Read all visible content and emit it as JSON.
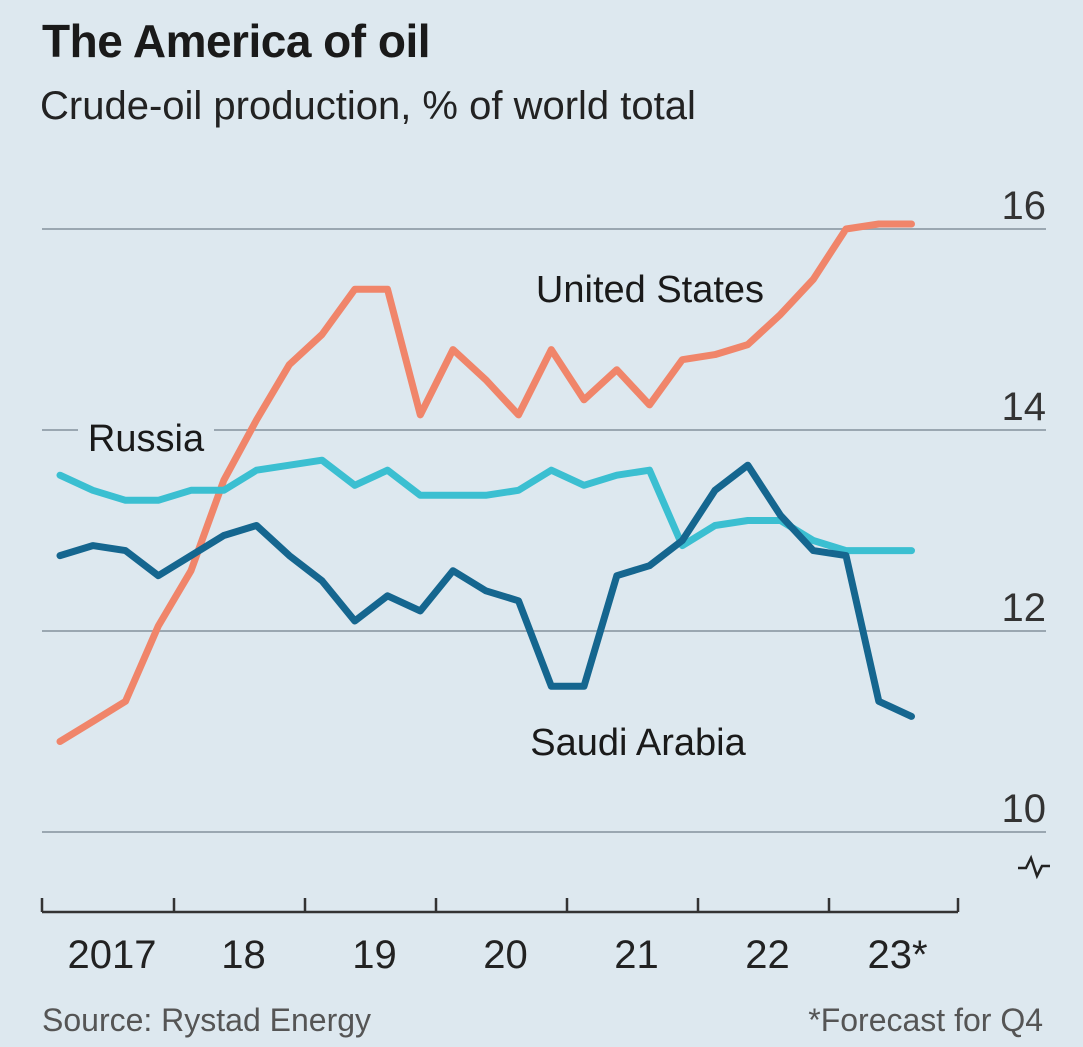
{
  "title": "The America of oil",
  "subtitle": "Crude-oil production, % of world total",
  "source": "Source: Rystad Energy",
  "footnote": "*Forecast for Q4",
  "chart_data": {
    "type": "line",
    "y_axis": {
      "ticks": [
        10,
        12,
        14,
        16
      ],
      "ylim": [
        10,
        16
      ],
      "side": "right",
      "broken_at_zero": true
    },
    "x_axis": {
      "tick_labels": [
        "2017",
        "18",
        "19",
        "20",
        "21",
        "22",
        "23*"
      ],
      "years": [
        2017,
        2018,
        2019,
        2020,
        2021,
        2022,
        2023
      ]
    },
    "grid": "horizontal",
    "colors": {
      "background": "#dde8ef",
      "grid": "#9aa7b1",
      "axis": "#333333"
    },
    "series": [
      {
        "name": "United States",
        "color": "#f0856a",
        "x": [
          2017.0,
          2017.25,
          2017.5,
          2017.75,
          2018.0,
          2018.25,
          2018.5,
          2018.75,
          2019.0,
          2019.25,
          2019.5,
          2019.75,
          2020.0,
          2020.25,
          2020.5,
          2020.75,
          2021.0,
          2021.25,
          2021.5,
          2021.75,
          2022.0,
          2022.25,
          2022.5,
          2022.75,
          2023.0,
          2023.25,
          2023.5
        ],
        "values": [
          10.9,
          11.1,
          11.3,
          12.05,
          12.6,
          13.5,
          14.1,
          14.65,
          14.95,
          15.4,
          15.4,
          14.15,
          14.8,
          14.5,
          14.15,
          14.8,
          14.3,
          14.6,
          14.25,
          14.7,
          14.75,
          14.85,
          15.15,
          15.5,
          16.0,
          16.05,
          16.05
        ]
      },
      {
        "name": "Russia",
        "color": "#3bbfd1",
        "x": [
          2017.0,
          2017.25,
          2017.5,
          2017.75,
          2018.0,
          2018.25,
          2018.5,
          2018.75,
          2019.0,
          2019.25,
          2019.5,
          2019.75,
          2020.0,
          2020.25,
          2020.5,
          2020.75,
          2021.0,
          2021.25,
          2021.5,
          2021.75,
          2022.0,
          2022.25,
          2022.5,
          2022.75,
          2023.0,
          2023.25,
          2023.5
        ],
        "values": [
          13.55,
          13.4,
          13.3,
          13.3,
          13.4,
          13.4,
          13.6,
          13.65,
          13.7,
          13.45,
          13.6,
          13.35,
          13.35,
          13.35,
          13.4,
          13.6,
          13.45,
          13.55,
          13.6,
          12.85,
          13.05,
          13.1,
          13.1,
          12.9,
          12.8,
          12.8,
          12.8
        ]
      },
      {
        "name": "Saudi Arabia",
        "color": "#15668f",
        "x": [
          2017.0,
          2017.25,
          2017.5,
          2017.75,
          2018.0,
          2018.25,
          2018.5,
          2018.75,
          2019.0,
          2019.25,
          2019.5,
          2019.75,
          2020.0,
          2020.25,
          2020.5,
          2020.75,
          2021.0,
          2021.25,
          2021.5,
          2021.75,
          2022.0,
          2022.25,
          2022.5,
          2022.75,
          2023.0,
          2023.25,
          2023.5
        ],
        "values": [
          12.75,
          12.85,
          12.8,
          12.55,
          12.75,
          12.95,
          13.05,
          12.75,
          12.5,
          12.1,
          12.35,
          12.2,
          12.6,
          12.4,
          12.3,
          11.45,
          11.45,
          12.55,
          12.65,
          12.9,
          13.4,
          13.65,
          13.15,
          12.8,
          12.75,
          11.3,
          11.15
        ]
      }
    ],
    "labels": [
      {
        "text": "United States",
        "series": "United States"
      },
      {
        "text": "Russia",
        "series": "Russia"
      },
      {
        "text": "Saudi Arabia",
        "series": "Saudi Arabia"
      }
    ]
  }
}
